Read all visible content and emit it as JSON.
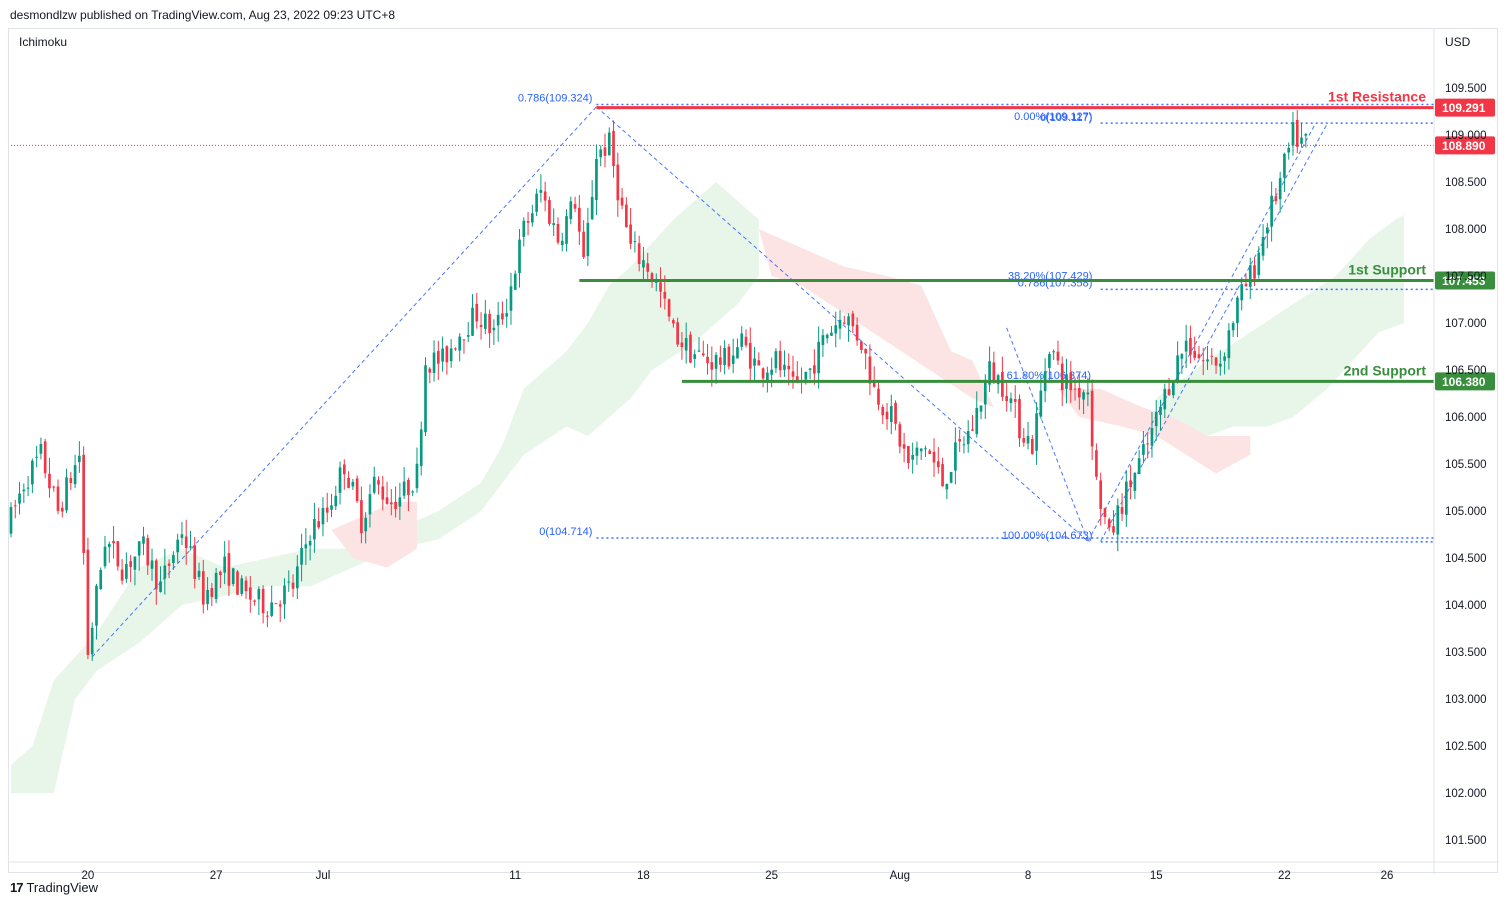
{
  "header": {
    "publish_line": "desmondlzw published on TradingView.com, Aug 23, 2022 09:23 UTC+8"
  },
  "footer": {
    "logo_mark": "17",
    "brand": "TradingView"
  },
  "colors": {
    "bull": "#089981",
    "bear": "#f23645",
    "resistance": "#f23645",
    "support": "#388e3c",
    "fib": "#2962ff",
    "cloud_bull": "#e8f5e9",
    "cloud_bear": "#fde4e4",
    "grid": "#f0f3fa"
  },
  "chart_data": {
    "type": "candlestick",
    "symbol_indicator": "Ichimoku",
    "currency": "USD",
    "y_axis": {
      "min": 101.3,
      "max": 110.0,
      "ticks": [
        "101.500",
        "102.000",
        "102.500",
        "103.000",
        "103.500",
        "104.000",
        "104.500",
        "105.000",
        "105.500",
        "106.000",
        "106.500",
        "107.000",
        "107.500",
        "108.000",
        "108.500",
        "109.000",
        "109.500"
      ]
    },
    "x_axis": {
      "ticks": [
        {
          "label": "20",
          "bar": 18
        },
        {
          "label": "27",
          "bar": 48
        },
        {
          "label": "Jul",
          "bar": 73
        },
        {
          "label": "11",
          "bar": 118
        },
        {
          "label": "18",
          "bar": 148
        },
        {
          "label": "25",
          "bar": 178
        },
        {
          "label": "Aug",
          "bar": 208
        },
        {
          "label": "8",
          "bar": 238
        },
        {
          "label": "15",
          "bar": 268
        },
        {
          "label": "22",
          "bar": 298
        },
        {
          "label": "26",
          "bar": 322
        }
      ]
    },
    "levels": [
      {
        "name": "1st Resistance",
        "value": 109.291,
        "label": "109.291",
        "kind": "resistance",
        "from_bar": 137
      },
      {
        "name": "1st Support",
        "value": 107.453,
        "label": "107.453",
        "kind": "support",
        "from_bar": 133
      },
      {
        "name": "2nd Support",
        "value": 106.38,
        "label": "106.380",
        "kind": "support",
        "from_bar": 157
      }
    ],
    "last_price": {
      "value": 108.89,
      "label": "108.890"
    },
    "fib_labels": [
      {
        "text": "0.786(109.324)",
        "value": 109.324,
        "bar": 137,
        "anchor": "end"
      },
      {
        "text": "0(104.714)",
        "value": 104.714,
        "bar": 137,
        "anchor": "end"
      },
      {
        "text": "0(109.117)",
        "value": 109.117,
        "bar": 254,
        "anchor": "end"
      },
      {
        "text": "0.00%(109.127)",
        "value": 109.127,
        "bar": 254,
        "anchor": "end"
      },
      {
        "text": "0.786(107.358)",
        "value": 107.358,
        "bar": 254,
        "anchor": "end"
      },
      {
        "text": "38.20%(107.429)",
        "value": 107.429,
        "bar": 254,
        "anchor": "end"
      },
      {
        "text": "61.80%(106.374)",
        "value": 106.374,
        "bar": 233,
        "anchor": "start"
      },
      {
        "text": "100.00%(104.673)",
        "value": 104.673,
        "bar": 254,
        "anchor": "end"
      }
    ],
    "fib_lines": [
      {
        "value": 109.324,
        "from_bar": 137,
        "to_bar": 333
      },
      {
        "value": 104.714,
        "from_bar": 137,
        "to_bar": 333
      },
      {
        "value": 109.127,
        "from_bar": 255,
        "to_bar": 333
      },
      {
        "value": 107.358,
        "from_bar": 255,
        "to_bar": 333
      },
      {
        "value": 104.673,
        "from_bar": 255,
        "to_bar": 333
      }
    ],
    "trend_lines": [
      {
        "x1": 19,
        "y1": 103.45,
        "x2": 137,
        "y2": 109.3
      },
      {
        "x1": 137,
        "y1": 109.3,
        "x2": 252,
        "y2": 104.68
      },
      {
        "x1": 252,
        "y1": 104.68,
        "x2": 305,
        "y2": 109.1
      },
      {
        "x1": 233,
        "y1": 106.95,
        "x2": 252,
        "y2": 104.68
      },
      {
        "x1": 255,
        "y1": 104.68,
        "x2": 308,
        "y2": 109.12
      }
    ],
    "cloud_bull": [
      [
        [
          0,
          102.3
        ],
        [
          5,
          102.5
        ],
        [
          10,
          103.2
        ],
        [
          20,
          103.7
        ],
        [
          30,
          104.4
        ],
        [
          40,
          104.6
        ],
        [
          50,
          104.4
        ],
        [
          60,
          104.5
        ],
        [
          70,
          104.6
        ],
        [
          80,
          104.6
        ],
        [
          90,
          104.8
        ],
        [
          100,
          105.0
        ],
        [
          110,
          105.3
        ],
        [
          115,
          105.7
        ],
        [
          120,
          106.3
        ],
        [
          125,
          106.5
        ],
        [
          130,
          106.7
        ],
        [
          135,
          107.0
        ],
        [
          140,
          107.4
        ],
        [
          145,
          107.6
        ],
        [
          155,
          108.1
        ],
        [
          160,
          108.3
        ],
        [
          165,
          108.5
        ],
        [
          170,
          108.3
        ],
        [
          175,
          108.1
        ],
        [
          175,
          107.5
        ],
        [
          170,
          107.2
        ],
        [
          160,
          106.8
        ],
        [
          150,
          106.5
        ],
        [
          145,
          106.2
        ],
        [
          140,
          106.0
        ],
        [
          135,
          105.8
        ],
        [
          130,
          105.9
        ],
        [
          120,
          105.6
        ],
        [
          110,
          105.0
        ],
        [
          100,
          104.7
        ],
        [
          90,
          104.6
        ],
        [
          80,
          104.4
        ],
        [
          70,
          104.2
        ],
        [
          60,
          104.2
        ],
        [
          50,
          104.1
        ],
        [
          40,
          104.0
        ],
        [
          30,
          103.6
        ],
        [
          20,
          103.3
        ],
        [
          15,
          103.0
        ],
        [
          10,
          102.0
        ],
        [
          0,
          102.0
        ]
      ],
      [
        [
          268,
          106.2
        ],
        [
          280,
          106.6
        ],
        [
          290,
          106.9
        ],
        [
          300,
          107.2
        ],
        [
          310,
          107.5
        ],
        [
          318,
          107.9
        ],
        [
          324,
          108.1
        ],
        [
          326,
          108.15
        ],
        [
          326,
          107.0
        ],
        [
          320,
          106.9
        ],
        [
          314,
          106.6
        ],
        [
          308,
          106.3
        ],
        [
          300,
          106.0
        ],
        [
          294,
          105.9
        ],
        [
          286,
          105.9
        ],
        [
          280,
          105.8
        ],
        [
          270,
          105.8
        ]
      ]
    ],
    "cloud_bear": [
      [
        [
          75,
          104.8
        ],
        [
          85,
          105.0
        ],
        [
          90,
          105.1
        ],
        [
          95,
          105.1
        ],
        [
          95,
          104.6
        ],
        [
          88,
          104.4
        ],
        [
          80,
          104.5
        ]
      ],
      [
        [
          175,
          108.0
        ],
        [
          185,
          107.8
        ],
        [
          195,
          107.6
        ],
        [
          205,
          107.5
        ],
        [
          213,
          107.4
        ],
        [
          220,
          106.7
        ],
        [
          225,
          106.6
        ],
        [
          230,
          106.1
        ],
        [
          225,
          106.2
        ],
        [
          215,
          106.5
        ],
        [
          205,
          106.8
        ],
        [
          195,
          107.1
        ],
        [
          185,
          107.4
        ],
        [
          178,
          107.5
        ]
      ],
      [
        [
          245,
          106.3
        ],
        [
          255,
          106.3
        ],
        [
          265,
          106.1
        ],
        [
          272,
          106.0
        ],
        [
          280,
          105.8
        ],
        [
          290,
          105.8
        ],
        [
          290,
          105.6
        ],
        [
          282,
          105.4
        ],
        [
          275,
          105.6
        ],
        [
          268,
          105.8
        ],
        [
          260,
          105.9
        ],
        [
          250,
          106.0
        ]
      ]
    ],
    "anchors": [
      [
        0,
        104.8
      ],
      [
        4,
        105.3
      ],
      [
        8,
        105.6
      ],
      [
        12,
        105.0
      ],
      [
        17,
        105.6
      ],
      [
        19,
        103.5
      ],
      [
        23,
        104.7
      ],
      [
        27,
        104.4
      ],
      [
        32,
        104.6
      ],
      [
        36,
        104.2
      ],
      [
        41,
        104.8
      ],
      [
        46,
        104.1
      ],
      [
        51,
        104.4
      ],
      [
        56,
        104.1
      ],
      [
        61,
        104.0
      ],
      [
        67,
        104.2
      ],
      [
        71,
        104.8
      ],
      [
        75,
        105.0
      ],
      [
        79,
        105.5
      ],
      [
        83,
        104.9
      ],
      [
        86,
        105.3
      ],
      [
        90,
        105.1
      ],
      [
        93,
        105.2
      ],
      [
        96,
        105.4
      ],
      [
        98,
        106.6
      ],
      [
        102,
        106.6
      ],
      [
        106,
        106.9
      ],
      [
        110,
        107.1
      ],
      [
        114,
        106.9
      ],
      [
        117,
        107.2
      ],
      [
        121,
        108.0
      ],
      [
        125,
        108.4
      ],
      [
        129,
        107.9
      ],
      [
        133,
        108.3
      ],
      [
        135,
        107.6
      ],
      [
        138,
        108.8
      ],
      [
        141,
        108.9
      ],
      [
        144,
        108.2
      ],
      [
        146,
        107.8
      ],
      [
        150,
        107.6
      ],
      [
        153,
        107.3
      ],
      [
        156,
        106.9
      ],
      [
        160,
        106.7
      ],
      [
        164,
        106.6
      ],
      [
        168,
        106.6
      ],
      [
        172,
        106.8
      ],
      [
        176,
        106.5
      ],
      [
        180,
        106.6
      ],
      [
        184,
        106.3
      ],
      [
        188,
        106.5
      ],
      [
        192,
        106.9
      ],
      [
        196,
        107.1
      ],
      [
        200,
        106.8
      ],
      [
        203,
        106.3
      ],
      [
        207,
        106.0
      ],
      [
        211,
        105.5
      ],
      [
        215,
        105.7
      ],
      [
        219,
        105.3
      ],
      [
        222,
        105.6
      ],
      [
        226,
        105.9
      ],
      [
        230,
        106.5
      ],
      [
        234,
        106.3
      ],
      [
        237,
        105.9
      ],
      [
        240,
        105.7
      ],
      [
        244,
        106.8
      ],
      [
        247,
        106.4
      ],
      [
        250,
        106.3
      ],
      [
        253,
        106.3
      ],
      [
        255,
        105.3
      ],
      [
        258,
        104.7
      ],
      [
        261,
        105.1
      ],
      [
        264,
        105.4
      ],
      [
        267,
        105.7
      ],
      [
        270,
        106.1
      ],
      [
        273,
        106.5
      ],
      [
        276,
        106.8
      ],
      [
        280,
        106.6
      ],
      [
        284,
        106.6
      ],
      [
        288,
        107.2
      ],
      [
        292,
        107.6
      ],
      [
        295,
        108.1
      ],
      [
        298,
        108.5
      ],
      [
        301,
        109.0
      ],
      [
        303,
        108.92
      ]
    ]
  }
}
